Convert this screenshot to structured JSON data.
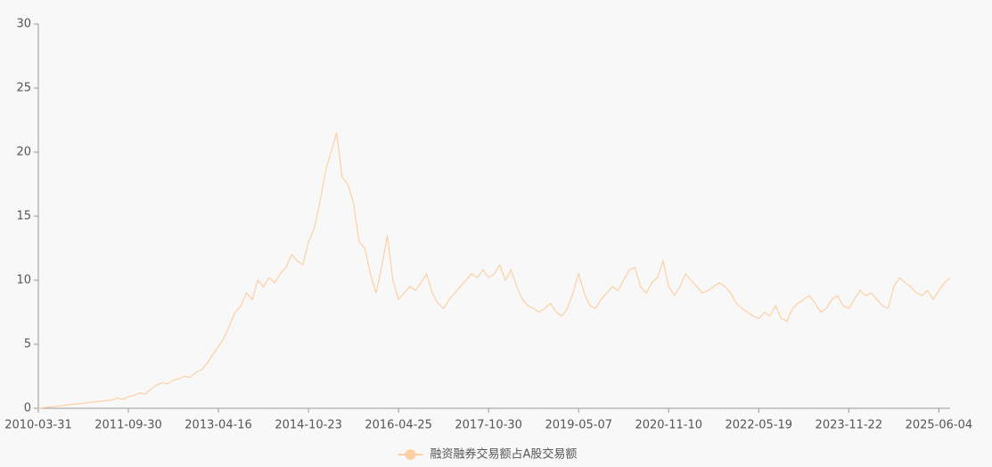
{
  "chart_data": {
    "type": "line",
    "categories": [
      "2010-03-31",
      null,
      null,
      null,
      null,
      null,
      null,
      null,
      null,
      null,
      null,
      null,
      null,
      null,
      null,
      null,
      "2011-09-30",
      null,
      null,
      null,
      null,
      null,
      null,
      null,
      null,
      null,
      null,
      null,
      null,
      null,
      null,
      null,
      "2013-04-16",
      null,
      null,
      null,
      null,
      null,
      null,
      null,
      null,
      null,
      null,
      null,
      null,
      null,
      null,
      null,
      "2014-10-23",
      null,
      null,
      null,
      null,
      null,
      null,
      null,
      null,
      null,
      null,
      null,
      null,
      null,
      null,
      null,
      "2016-04-25",
      null,
      null,
      null,
      null,
      null,
      null,
      null,
      null,
      null,
      null,
      null,
      null,
      null,
      null,
      null,
      "2017-10-30",
      null,
      null,
      null,
      null,
      null,
      null,
      null,
      null,
      null,
      null,
      null,
      null,
      null,
      null,
      null,
      "2019-05-07",
      null,
      null,
      null,
      null,
      null,
      null,
      null,
      null,
      null,
      null,
      null,
      null,
      null,
      null,
      null,
      "2020-11-10",
      null,
      null,
      null,
      null,
      null,
      null,
      null,
      null,
      null,
      null,
      null,
      null,
      null,
      null,
      null,
      "2022-05-19",
      null,
      null,
      null,
      null,
      null,
      null,
      null,
      null,
      null,
      null,
      null,
      null,
      null,
      null,
      null,
      "2023-11-22",
      null,
      null,
      null,
      null,
      null,
      null,
      null,
      null,
      null,
      null,
      null,
      null,
      null,
      null,
      null,
      "2025-06-04",
      null,
      null
    ],
    "series": [
      {
        "name": "融资融券交易额占A股交易额",
        "color": "#fcd0a4",
        "values": [
          0,
          0.05,
          0.1,
          0.15,
          0.2,
          0.25,
          0.3,
          0.35,
          0.4,
          0.45,
          0.5,
          0.55,
          0.6,
          0.65,
          0.8,
          0.7,
          0.9,
          1.0,
          1.2,
          1.1,
          1.5,
          1.8,
          2.0,
          1.9,
          2.2,
          2.3,
          2.5,
          2.4,
          2.8,
          3.0,
          3.5,
          4.2,
          4.8,
          5.5,
          6.5,
          7.5,
          8.0,
          9.0,
          8.5,
          10.0,
          9.5,
          10.2,
          9.8,
          10.5,
          11.0,
          12.0,
          11.5,
          11.2,
          13.0,
          14.0,
          16.0,
          18.5,
          20.0,
          21.5,
          18.0,
          17.5,
          16.0,
          13.0,
          12.5,
          10.5,
          9.0,
          11.0,
          13.5,
          10.0,
          8.5,
          9.0,
          9.5,
          9.2,
          9.8,
          10.5,
          9.0,
          8.2,
          7.8,
          8.5,
          9.0,
          9.5,
          10.0,
          10.5,
          10.2,
          10.8,
          10.2,
          10.5,
          11.2,
          10.0,
          10.8,
          9.5,
          8.5,
          8.0,
          7.8,
          7.5,
          7.8,
          8.2,
          7.5,
          7.2,
          7.8,
          9.0,
          10.5,
          9.0,
          8.0,
          7.8,
          8.5,
          9.0,
          9.5,
          9.2,
          10.0,
          10.8,
          11.0,
          9.5,
          9.0,
          9.8,
          10.2,
          11.5,
          9.5,
          8.8,
          9.5,
          10.5,
          10.0,
          9.5,
          9.0,
          9.2,
          9.5,
          9.8,
          9.5,
          9.0,
          8.2,
          7.8,
          7.5,
          7.2,
          7.0,
          7.5,
          7.2,
          8.0,
          7.0,
          6.8,
          7.8,
          8.2,
          8.5,
          8.8,
          8.2,
          7.5,
          7.8,
          8.5,
          8.8,
          8.0,
          7.8,
          8.5,
          9.2,
          8.8,
          9.0,
          8.5,
          8.0,
          7.8,
          9.5,
          10.2,
          9.8,
          9.5,
          9.0,
          8.8,
          9.2,
          8.5,
          9.2,
          9.8,
          10.2
        ]
      }
    ],
    "ylim": [
      0,
      30
    ],
    "yticks": [
      0,
      5,
      10,
      15,
      20,
      25,
      30
    ],
    "grid": false,
    "legend": "bottom"
  }
}
